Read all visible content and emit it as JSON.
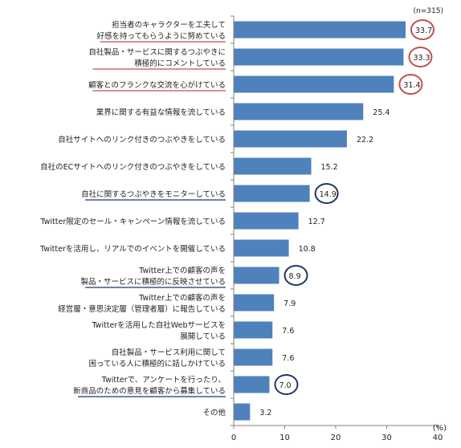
{
  "chart_data": {
    "type": "bar",
    "orientation": "horizontal",
    "note": "(n=315)",
    "x_unit": "(%)",
    "xlim": [
      0,
      40
    ],
    "xticks": [
      0,
      10,
      20,
      30,
      40
    ],
    "bar_color": "#4F81BD",
    "highlight_red": "#C0504D",
    "highlight_navy": "#1F3864",
    "categories": [
      {
        "lines": [
          "担当者のキャラクターを工夫して",
          "好感を持ってもらうように努めている"
        ],
        "value": 33.7,
        "underline": true,
        "circle": "red"
      },
      {
        "lines": [
          "自社製品・サービスに関するつぶやきに",
          "積極的にコメントしている"
        ],
        "value": 33.3,
        "underline": true,
        "circle": "red"
      },
      {
        "lines": [
          "顧客とのフランクな交流を心がけている"
        ],
        "value": 31.4,
        "underline": true,
        "circle": "red"
      },
      {
        "lines": [
          "業界に関する有益な情報を流している"
        ],
        "value": 25.4,
        "underline": false,
        "circle": null
      },
      {
        "lines": [
          "自社サイトへのリンク付きのつぶやきをしている"
        ],
        "value": 22.2,
        "underline": false,
        "circle": null
      },
      {
        "lines": [
          "自社のECサイトへのリンク付きのつぶやきをしている"
        ],
        "value": 15.2,
        "underline": false,
        "circle": null
      },
      {
        "lines": [
          "自社に関するつぶやきをモニターしている"
        ],
        "value": 14.9,
        "underline": true,
        "circle": "navy"
      },
      {
        "lines": [
          "Twitter限定のセール・キャンペーン情報を流している"
        ],
        "value": 12.7,
        "underline": false,
        "circle": null
      },
      {
        "lines": [
          "Twitterを活用し、リアルでのイベントを開催している"
        ],
        "value": 10.8,
        "underline": false,
        "circle": null
      },
      {
        "lines": [
          "Twitter上での顧客の声を",
          "製品・サービスに積極的に反映させている"
        ],
        "value": 8.9,
        "underline": true,
        "circle": "navy"
      },
      {
        "lines": [
          "Twitter上での顧客の声を",
          "経営層・意思決定層（管理者層）に報告している"
        ],
        "value": 7.9,
        "underline": false,
        "circle": null
      },
      {
        "lines": [
          "Twitterを活用した自社Webサービスを",
          "展開している"
        ],
        "value": 7.6,
        "underline": false,
        "circle": null
      },
      {
        "lines": [
          "自社製品・サービス利用に関して",
          "困っている人に積極的に話しかけている"
        ],
        "value": 7.6,
        "underline": false,
        "circle": null
      },
      {
        "lines": [
          "Twitterで、アンケートを行ったり、",
          "新商品のための意見を顧客から募集している"
        ],
        "value": 7.0,
        "underline": true,
        "circle": "navy"
      },
      {
        "lines": [
          "その他"
        ],
        "value": 3.2,
        "underline": false,
        "circle": null
      }
    ]
  }
}
